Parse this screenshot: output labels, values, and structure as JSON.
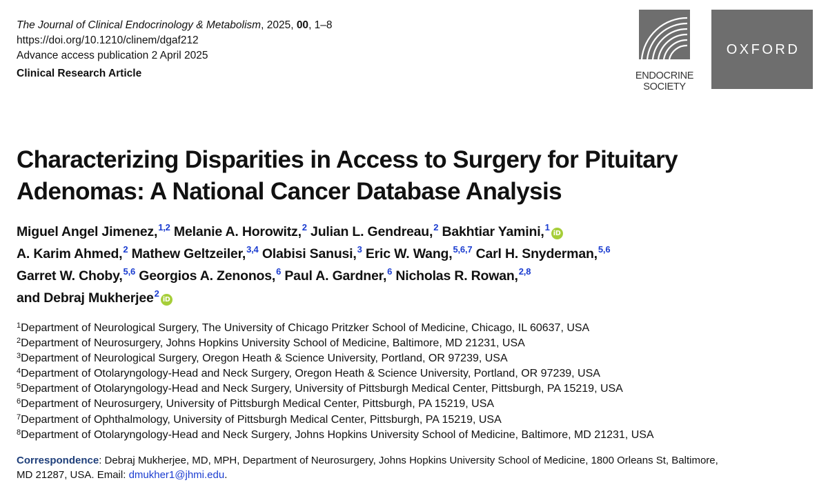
{
  "header": {
    "journal_name": "The Journal of Clinical Endocrinology & Metabolism",
    "journal_year": ", 2025, ",
    "volume": "00",
    "pages": ", 1–8",
    "doi": "https://doi.org/10.1210/clinem/dgaf212",
    "publication": "Advance access publication 2 April 2025",
    "article_type": "Clinical Research Article"
  },
  "logos": {
    "endocrine_society": {
      "line1": "ENDOCRINE",
      "line2": "SOCIETY"
    },
    "oxford": "OXFORD"
  },
  "title": {
    "line1": "Characterizing Disparities in Access to Surgery for Pituitary",
    "line2": "Adenomas: A National Cancer Database Analysis"
  },
  "authors": [
    {
      "name": "Miguel Angel Jimenez,",
      "sup": "1,2",
      "orcid": false
    },
    {
      "name": "Melanie A. Horowitz,",
      "sup": "2",
      "orcid": false
    },
    {
      "name": "Julian L. Gendreau,",
      "sup": "2",
      "orcid": false
    },
    {
      "name": "Bakhtiar Yamini,",
      "sup": "1",
      "orcid": true
    },
    {
      "name": "A. Karim Ahmed,",
      "sup": "2",
      "orcid": false
    },
    {
      "name": "Mathew Geltzeiler,",
      "sup": "3,4",
      "orcid": false
    },
    {
      "name": "Olabisi Sanusi,",
      "sup": "3",
      "orcid": false
    },
    {
      "name": "Eric W. Wang,",
      "sup": "5,6,7",
      "orcid": false
    },
    {
      "name": "Carl H. Snyderman,",
      "sup": "5,6",
      "orcid": false
    },
    {
      "name": "Garret W. Choby,",
      "sup": "5,6",
      "orcid": false
    },
    {
      "name": "Georgios A. Zenonos,",
      "sup": "6",
      "orcid": false
    },
    {
      "name": "Paul A. Gardner,",
      "sup": "6",
      "orcid": false
    },
    {
      "name": "Nicholas R. Rowan,",
      "sup": "2,8",
      "orcid": false
    },
    {
      "name": "and Debraj Mukherjee",
      "sup": "2",
      "orcid": true
    }
  ],
  "orcid_label": "iD",
  "affiliations": [
    {
      "num": "1",
      "text": "Department of Neurological Surgery, The University of Chicago Pritzker School of Medicine, Chicago, IL 60637, USA"
    },
    {
      "num": "2",
      "text": "Department of Neurosurgery, Johns Hopkins University School of Medicine, Baltimore, MD 21231, USA"
    },
    {
      "num": "3",
      "text": "Department of Neurological Surgery, Oregon Heath & Science University, Portland, OR 97239, USA"
    },
    {
      "num": "4",
      "text": "Department of Otolaryngology-Head and Neck Surgery, Oregon Heath & Science University, Portland, OR 97239, USA"
    },
    {
      "num": "5",
      "text": "Department of Otolaryngology-Head and Neck Surgery, University of Pittsburgh Medical Center, Pittsburgh, PA 15219, USA"
    },
    {
      "num": "6",
      "text": "Department of Neurosurgery, University of Pittsburgh Medical Center, Pittsburgh, PA 15219, USA"
    },
    {
      "num": "7",
      "text": "Department of Ophthalmology, University of Pittsburgh Medical Center, Pittsburgh, PA 15219, USA"
    },
    {
      "num": "8",
      "text": "Department of Otolaryngology-Head and Neck Surgery, Johns Hopkins University School of Medicine, Baltimore, MD 21231, USA"
    }
  ],
  "correspondence": {
    "label": "Correspondence",
    "text_line1": ": Debraj Mukherjee, MD, MPH, Department of Neurosurgery, Johns Hopkins University School of Medicine, 1800 Orleans St, Baltimore,",
    "text_line2": "MD 21287, USA. Email: ",
    "email": "dmukher1@jhmi.edu",
    "end": "."
  },
  "colors": {
    "superscript_link": "#1a3cd0",
    "orcid": "#a6ce39",
    "logo_gray": "#6e6e6e"
  }
}
